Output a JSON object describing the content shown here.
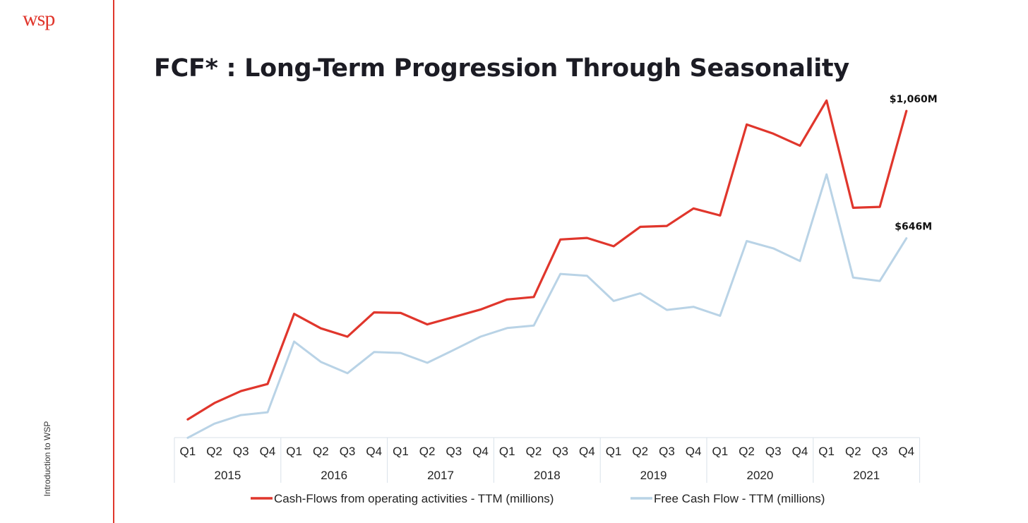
{
  "brand": {
    "logo_text": "wsp",
    "accent": "#e0362c"
  },
  "side_caption": "Introduction to WSP",
  "title": "FCF* : Long-Term Progression Through Seasonality",
  "chart_data": {
    "type": "line",
    "title": "FCF* : Long-Term Progression Through Seasonality",
    "x_quarters": [
      "Q1",
      "Q2",
      "Q3",
      "Q4",
      "Q1",
      "Q2",
      "Q3",
      "Q4",
      "Q1",
      "Q2",
      "Q3",
      "Q4",
      "Q1",
      "Q2",
      "Q3",
      "Q4",
      "Q1",
      "Q2",
      "Q3",
      "Q4",
      "Q1",
      "Q2",
      "Q3",
      "Q4",
      "Q1",
      "Q2",
      "Q3",
      "Q4"
    ],
    "x_years": [
      "2015",
      "2016",
      "2017",
      "2018",
      "2019",
      "2020",
      "2021"
    ],
    "ylim": [
      0,
      1150
    ],
    "grid": false,
    "legend_position": "bottom",
    "series": [
      {
        "name": "Cash-Flows from operating activities - TTM (millions)",
        "color": "#e0362c",
        "values": [
          57,
          110,
          149,
          172,
          400,
          353,
          326,
          405,
          403,
          366,
          390,
          414,
          447,
          455,
          642,
          647,
          620,
          683,
          686,
          743,
          720,
          1016,
          986,
          947,
          1094,
          745,
          748,
          1060
        ],
        "end_label": "$1,060M"
      },
      {
        "name": "Free Cash Flow - TTM (millions)",
        "color": "#b9d3e6",
        "values": [
          -3,
          43,
          71,
          80,
          310,
          244,
          207,
          276,
          273,
          241,
          283,
          326,
          354,
          362,
          530,
          524,
          442,
          467,
          413,
          423,
          394,
          637,
          613,
          572,
          854,
          518,
          507,
          646
        ],
        "end_label": "$646M"
      }
    ]
  }
}
